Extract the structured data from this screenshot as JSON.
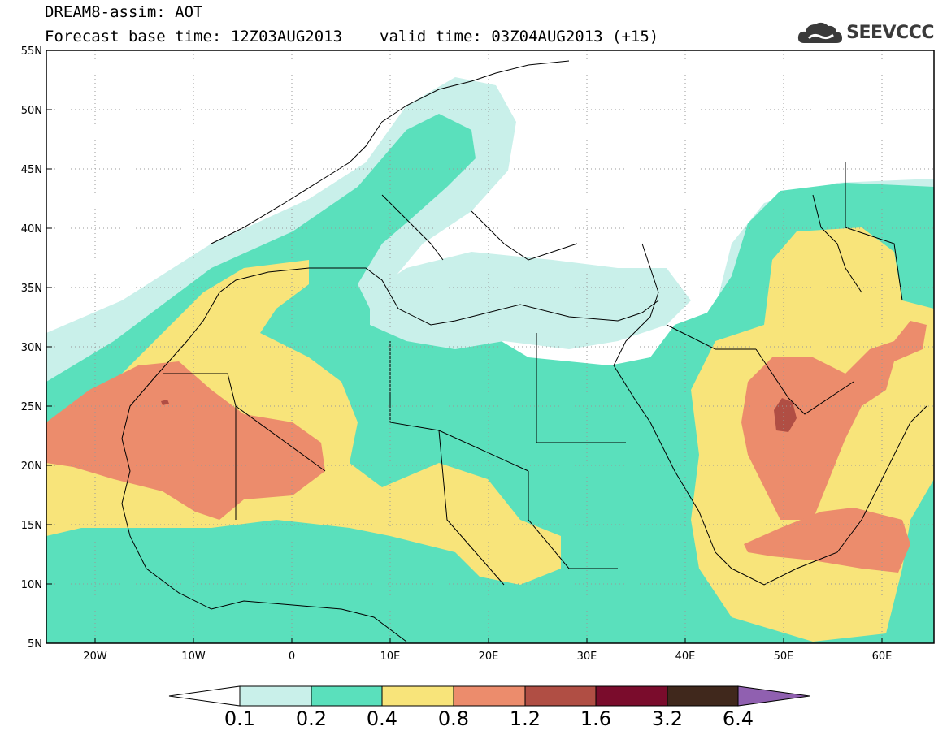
{
  "header": {
    "title": "DREAM8-assim: AOT",
    "base_time": "Forecast base time: 12Z03AUG2013",
    "valid_time": "valid time: 03Z04AUG2013 (+15)"
  },
  "logo": {
    "text": "SEEVCCC",
    "icon": "cloud-logo-icon"
  },
  "map": {
    "lon_range": [
      -25,
      65
    ],
    "lat_range": [
      5,
      55
    ],
    "lat_labels": [
      "55N",
      "50N",
      "45N",
      "40N",
      "35N",
      "30N",
      "25N",
      "20N",
      "15N",
      "10N",
      "5N"
    ],
    "lon_labels": [
      "20W",
      "10W",
      "0",
      "10E",
      "20E",
      "30E",
      "40E",
      "50E",
      "60E"
    ]
  },
  "colorbar": {
    "labels": [
      "0.1",
      "0.2",
      "0.4",
      "0.8",
      "1.2",
      "1.6",
      "3.2",
      "6.4"
    ],
    "colors": [
      "#c9f0ea",
      "#5ae0bc",
      "#f8e47a",
      "#ec8c6c",
      "#b04e44",
      "#7a0c2c",
      "#40281c",
      "#9060b0"
    ]
  }
}
